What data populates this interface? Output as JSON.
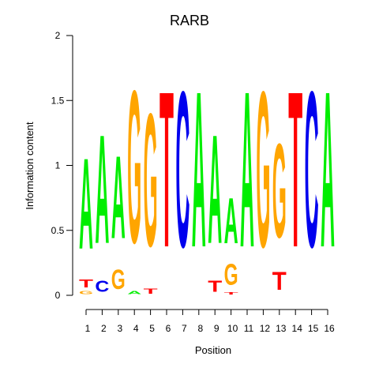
{
  "chart_data": {
    "type": "sequence-logo",
    "title": "RARB",
    "xlabel": "Position",
    "ylabel": "Information content",
    "ylim": [
      0,
      2
    ],
    "y_ticks": [
      "0",
      "0.5",
      "1",
      "1.5",
      "2"
    ],
    "positions": [
      "1",
      "2",
      "3",
      "4",
      "5",
      "6",
      "7",
      "8",
      "9",
      "10",
      "11",
      "12",
      "13",
      "14",
      "15",
      "16"
    ],
    "colors": {
      "A": "#00ee00",
      "C": "#0000ee",
      "G": "#ffa500",
      "T": "#ff0000"
    },
    "columns": [
      {
        "letters": [
          {
            "base": "G",
            "height": 0.04
          },
          {
            "base": "T",
            "height": 0.1
          },
          {
            "base": "A",
            "height": 1.12
          }
        ]
      },
      {
        "letters": [
          {
            "base": "C",
            "height": 0.14
          },
          {
            "base": "A",
            "height": 1.34
          }
        ]
      },
      {
        "letters": [
          {
            "base": "G",
            "height": 0.24
          },
          {
            "base": "A",
            "height": 1.02
          }
        ]
      },
      {
        "letters": [
          {
            "base": "A",
            "height": 0.04
          },
          {
            "base": "G",
            "height": 1.88
          }
        ]
      },
      {
        "letters": [
          {
            "base": "T",
            "height": 0.06
          },
          {
            "base": "G",
            "height": 1.64
          }
        ]
      },
      {
        "letters": [
          {
            "base": "T",
            "height": 1.92
          }
        ]
      },
      {
        "letters": [
          {
            "base": "C",
            "height": 1.92
          }
        ]
      },
      {
        "letters": [
          {
            "base": "A",
            "height": 1.92
          }
        ]
      },
      {
        "letters": [
          {
            "base": "T",
            "height": 0.14
          },
          {
            "base": "A",
            "height": 1.34
          }
        ]
      },
      {
        "letters": [
          {
            "base": "T",
            "height": 0.03
          },
          {
            "base": "G",
            "height": 0.26
          },
          {
            "base": "A",
            "height": 0.56
          }
        ]
      },
      {
        "letters": [
          {
            "base": "A",
            "height": 1.92
          }
        ]
      },
      {
        "letters": [
          {
            "base": "G",
            "height": 1.92
          }
        ]
      },
      {
        "letters": [
          {
            "base": "T",
            "height": 0.22
          },
          {
            "base": "G",
            "height": 1.16
          }
        ]
      },
      {
        "letters": [
          {
            "base": "T",
            "height": 1.92
          }
        ]
      },
      {
        "letters": [
          {
            "base": "C",
            "height": 1.92
          }
        ]
      },
      {
        "letters": [
          {
            "base": "A",
            "height": 1.92
          }
        ]
      }
    ]
  }
}
